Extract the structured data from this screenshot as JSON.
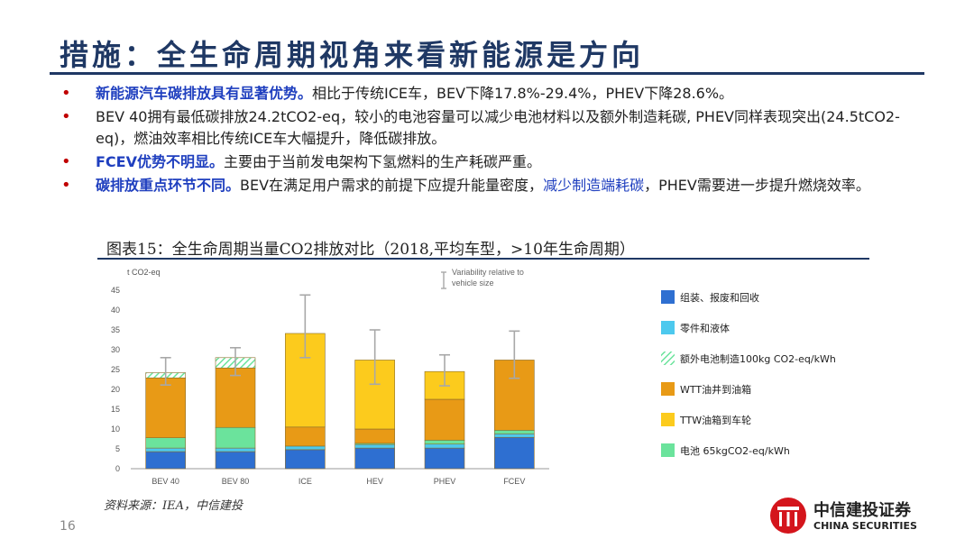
{
  "title": "措施：全生命周期视角来看新能源是方向",
  "bullets": [
    {
      "bold": "新能源汽车碳排放具有显著优势。",
      "rest": "相比于传统ICE车，BEV下降17.8%-29.4%，PHEV下降28.6%。"
    },
    {
      "bold": "",
      "rest": "BEV 40拥有最低碳排放24.2tCO2-eq，较小的电池容量可以减少电池材料以及额外制造耗碳, PHEV同样表现突出(24.5tCO2-eq)，燃油效率相比传统ICE车大幅提升，降低碳排放。"
    },
    {
      "bold": "FCEV优势不明显。",
      "rest": "主要由于当前发电架构下氢燃料的生产耗碳严重。"
    },
    {
      "bold": "碳排放重点环节不同。",
      "rest_a": "BEV在满足用户需求的前提下应提升能量密度，",
      "hl": "减少制造端耗碳",
      "rest_b": "，PHEV需要进一步提升燃烧效率。"
    }
  ],
  "caption": "图表15：全生命周期当量CO2排放对比（2018,平均车型，>10年生命周期）",
  "source": "资料来源：IEA，中信建投",
  "page_number": "16",
  "logo": {
    "cn": "中信建投证券",
    "en": "CHINA SECURITIES"
  },
  "colors": {
    "title": "#1f3864",
    "bullet": "#c00000",
    "highlight": "#1f3fbf"
  },
  "chart_data": {
    "type": "bar",
    "stacked": true,
    "ylabel": "t CO2-eq",
    "ylim": [
      0,
      45
    ],
    "yticks": [
      0,
      5,
      10,
      15,
      20,
      25,
      30,
      35,
      40,
      45
    ],
    "grid": false,
    "legend_position": "right",
    "annotation": "Variability relative to vehicle size",
    "categories": [
      "BEV 40",
      "BEV 80",
      "ICE",
      "HEV",
      "PHEV",
      "FCEV"
    ],
    "series": [
      {
        "name": "组装、报废和回收",
        "color": "#2e6fd1",
        "pattern": "solid",
        "values": [
          4.3,
          4.3,
          4.8,
          5.2,
          5.2,
          7.9
        ]
      },
      {
        "name": "零件和液体",
        "color": "#4dc9ee",
        "pattern": "solid",
        "values": [
          0.9,
          0.9,
          0.9,
          0.9,
          1.0,
          0.9
        ]
      },
      {
        "name": "电池 65kgCO2-eq/kWh",
        "color": "#6be39c",
        "pattern": "solid",
        "values": [
          2.6,
          5.2,
          0,
          0.3,
          1.0,
          0.9
        ]
      },
      {
        "name": "WTT油井到油箱",
        "color": "#e89a16",
        "pattern": "solid",
        "values": [
          15.1,
          15.0,
          4.8,
          3.6,
          10.3,
          17.7
        ]
      },
      {
        "name": "TTW油箱到车轮",
        "color": "#fccb1d",
        "pattern": "solid",
        "values": [
          0,
          0,
          23.6,
          17.4,
          7.0,
          0
        ]
      },
      {
        "name": "额外电池制造100kg CO2-eq/kWh",
        "color": "#6be39c",
        "pattern": "hatch",
        "values": [
          1.3,
          2.6,
          0,
          0,
          0,
          0
        ]
      }
    ],
    "error_bars": [
      {
        "low": 21.1,
        "high": 28.0
      },
      {
        "low": 23.5,
        "high": 30.5
      },
      {
        "low": 28.0,
        "high": 43.8
      },
      {
        "low": 21.3,
        "high": 35.0
      },
      {
        "low": 20.9,
        "high": 28.7
      },
      {
        "low": 22.8,
        "high": 34.7
      }
    ],
    "legend_order": [
      "组装、报废和回收",
      "零件和液体",
      "额外电池制造100kg CO2-eq/kWh",
      "WTT油井到油箱",
      "TTW油箱到车轮",
      "电池 65kgCO2-eq/kWh"
    ]
  }
}
